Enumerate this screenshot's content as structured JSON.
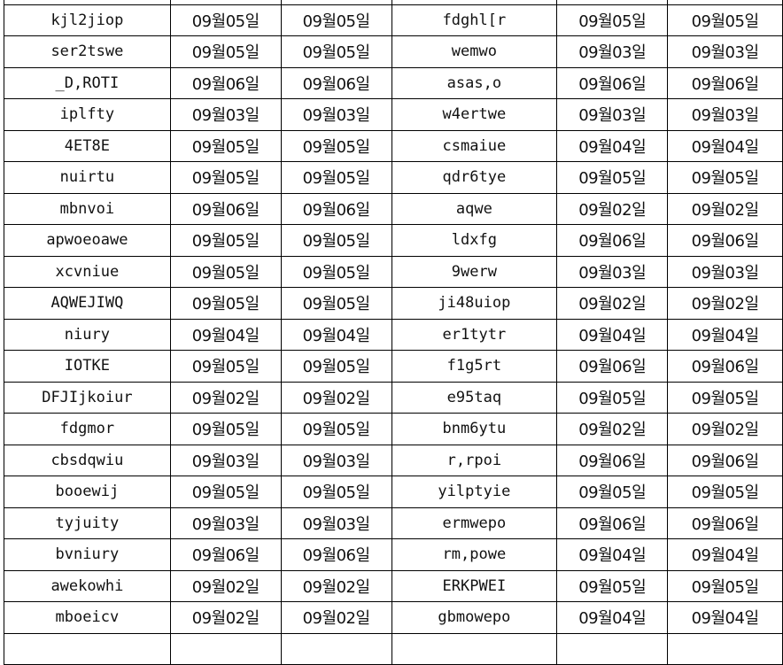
{
  "rows": [
    [
      "kjl2jiop",
      "09월05일",
      "09월05일",
      "fdghl[r",
      "09월05일",
      "09월05일"
    ],
    [
      "ser2tswe",
      "09월05일",
      "09월05일",
      "wemwo",
      "09월03일",
      "09월03일"
    ],
    [
      "_D,ROTI",
      "09월06일",
      "09월06일",
      "asas,o",
      "09월06일",
      "09월06일"
    ],
    [
      "iplfty",
      "09월03일",
      "09월03일",
      "w4ertwe",
      "09월03일",
      "09월03일"
    ],
    [
      "4ET8E",
      "09월05일",
      "09월05일",
      "csmaiue",
      "09월04일",
      "09월04일"
    ],
    [
      "nuirtu",
      "09월05일",
      "09월05일",
      "qdr6tye",
      "09월05일",
      "09월05일"
    ],
    [
      "mbnvoi",
      "09월06일",
      "09월06일",
      "aqwe",
      "09월02일",
      "09월02일"
    ],
    [
      "apwoeoawe",
      "09월05일",
      "09월05일",
      "ldxfg",
      "09월06일",
      "09월06일"
    ],
    [
      "xcvniue",
      "09월05일",
      "09월05일",
      "9werw",
      "09월03일",
      "09월03일"
    ],
    [
      "AQWEJIWQ",
      "09월05일",
      "09월05일",
      "ji48uiop",
      "09월02일",
      "09월02일"
    ],
    [
      "niury",
      "09월04일",
      "09월04일",
      "er1tytr",
      "09월04일",
      "09월04일"
    ],
    [
      "IOTKE",
      "09월05일",
      "09월05일",
      "f1g5rt",
      "09월06일",
      "09월06일"
    ],
    [
      "DFJIjkoiur",
      "09월02일",
      "09월02일",
      "e95taq",
      "09월05일",
      "09월05일"
    ],
    [
      "fdgmor",
      "09월05일",
      "09월05일",
      "bnm6ytu",
      "09월02일",
      "09월02일"
    ],
    [
      "cbsdqwiu",
      "09월03일",
      "09월03일",
      "r,rpoi",
      "09월06일",
      "09월06일"
    ],
    [
      "booewij",
      "09월05일",
      "09월05일",
      "yilptyie",
      "09월05일",
      "09월05일"
    ],
    [
      "tyjuity",
      "09월03일",
      "09월03일",
      "ermwepo",
      "09월06일",
      "09월06일"
    ],
    [
      "bvniury",
      "09월06일",
      "09월06일",
      "rm,powe",
      "09월04일",
      "09월04일"
    ],
    [
      "awekowhi",
      "09월02일",
      "09월02일",
      "ERKPWEI",
      "09월05일",
      "09월05일"
    ],
    [
      "mboeicv",
      "09월02일",
      "09월02일",
      "gbmowepo",
      "09월04일",
      "09월04일"
    ]
  ]
}
